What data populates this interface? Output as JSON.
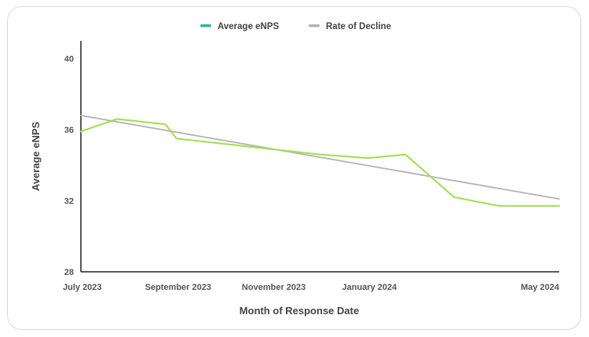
{
  "chart_data": {
    "type": "line",
    "title": "",
    "xlabel": "Month of Response Date",
    "ylabel": "Average eNPS",
    "ylim": [
      28,
      41
    ],
    "yticks": [
      28,
      32,
      36,
      40
    ],
    "xlim": [
      "2023-07-01",
      "2024-05-01"
    ],
    "xticks": [
      {
        "date": "2023-07-01",
        "label": "July 2023"
      },
      {
        "date": "2023-09-01",
        "label": "September 2023"
      },
      {
        "date": "2023-11-01",
        "label": "November 2023"
      },
      {
        "date": "2024-01-01",
        "label": "January 2024"
      },
      {
        "date": "2024-05-01",
        "label": "May 2024"
      }
    ],
    "grid": false,
    "legend_placement": "top-center",
    "series": [
      {
        "name": "Average eNPS",
        "legend_color": "#2bb5a0",
        "line_color": "#9ee04a",
        "points": [
          {
            "x": "2023-07-01",
            "y": 35.9
          },
          {
            "x": "2023-07-24",
            "y": 36.6
          },
          {
            "x": "2023-08-24",
            "y": 36.3
          },
          {
            "x": "2023-08-31",
            "y": 35.5
          },
          {
            "x": "2023-10-01",
            "y": 35.2
          },
          {
            "x": "2023-10-31",
            "y": 34.9
          },
          {
            "x": "2023-12-01",
            "y": 34.6
          },
          {
            "x": "2023-12-31",
            "y": 34.4
          },
          {
            "x": "2024-01-24",
            "y": 34.6
          },
          {
            "x": "2024-02-24",
            "y": 32.2
          },
          {
            "x": "2024-03-24",
            "y": 31.7
          },
          {
            "x": "2024-05-01",
            "y": 31.7
          }
        ]
      },
      {
        "name": "Rate of Decline",
        "legend_color": "#b3b3b3",
        "line_color": "#b3b3b3",
        "points": [
          {
            "x": "2023-07-01",
            "y": 36.8
          },
          {
            "x": "2024-05-01",
            "y": 32.1
          }
        ]
      }
    ]
  }
}
